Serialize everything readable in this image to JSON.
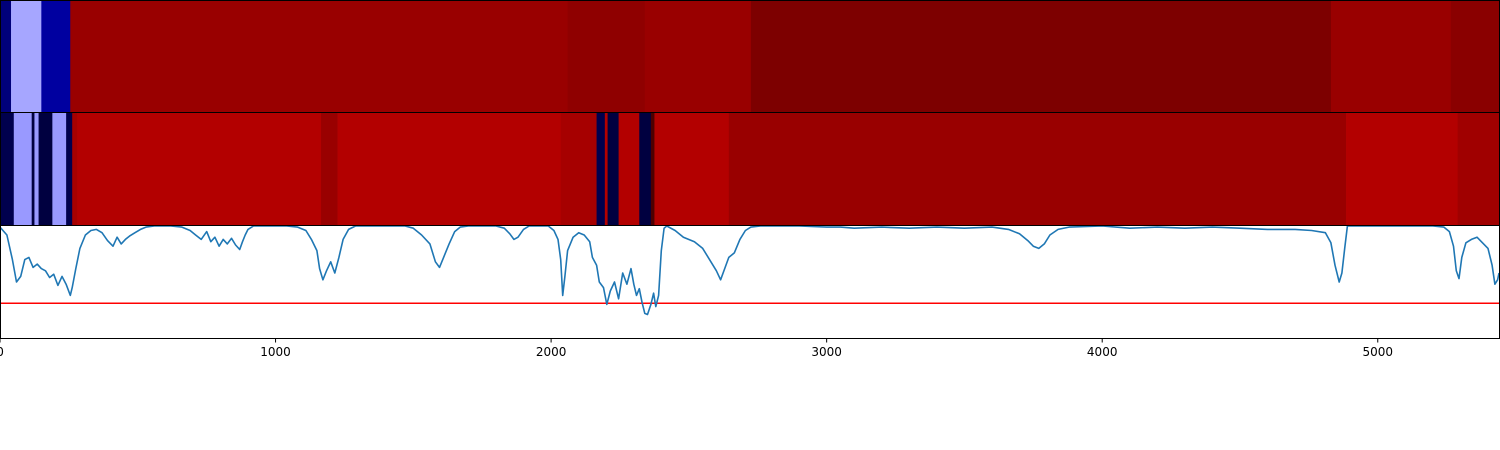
{
  "chart_data": [
    {
      "type": "heatmap",
      "xlim": [
        0,
        5440
      ],
      "segments": [
        {
          "x0": 0,
          "x1": 40,
          "color": "#00007a"
        },
        {
          "x0": 40,
          "x1": 150,
          "color": "#a6a6ff"
        },
        {
          "x0": 150,
          "x1": 255,
          "color": "#0000a0"
        },
        {
          "x0": 255,
          "x1": 2060,
          "color": "#990000"
        },
        {
          "x0": 2060,
          "x1": 2340,
          "color": "#8f0000"
        },
        {
          "x0": 2340,
          "x1": 2725,
          "color": "#990000"
        },
        {
          "x0": 2725,
          "x1": 4830,
          "color": "#7d0000"
        },
        {
          "x0": 4830,
          "x1": 5265,
          "color": "#990000"
        },
        {
          "x0": 5265,
          "x1": 5440,
          "color": "#8a0000"
        }
      ]
    },
    {
      "type": "heatmap",
      "xlim": [
        0,
        5440
      ],
      "segments": [
        {
          "x0": 0,
          "x1": 50,
          "color": "#00004d"
        },
        {
          "x0": 50,
          "x1": 115,
          "color": "#9999ff"
        },
        {
          "x0": 115,
          "x1": 125,
          "color": "#000040"
        },
        {
          "x0": 125,
          "x1": 140,
          "color": "#9999ff"
        },
        {
          "x0": 140,
          "x1": 190,
          "color": "#000040"
        },
        {
          "x0": 190,
          "x1": 240,
          "color": "#9999ff"
        },
        {
          "x0": 240,
          "x1": 262,
          "color": "#00004d"
        },
        {
          "x0": 262,
          "x1": 280,
          "color": "#a60000"
        },
        {
          "x0": 280,
          "x1": 1165,
          "color": "#b30000"
        },
        {
          "x0": 1165,
          "x1": 1225,
          "color": "#990000"
        },
        {
          "x0": 1225,
          "x1": 2035,
          "color": "#b30000"
        },
        {
          "x0": 2035,
          "x1": 2165,
          "color": "#a60000"
        },
        {
          "x0": 2165,
          "x1": 2195,
          "color": "#00004d"
        },
        {
          "x0": 2195,
          "x1": 2205,
          "color": "#b30000"
        },
        {
          "x0": 2205,
          "x1": 2245,
          "color": "#000040"
        },
        {
          "x0": 2245,
          "x1": 2320,
          "color": "#b30000"
        },
        {
          "x0": 2320,
          "x1": 2362,
          "color": "#000040"
        },
        {
          "x0": 2362,
          "x1": 2375,
          "color": "#4d0000"
        },
        {
          "x0": 2375,
          "x1": 2645,
          "color": "#b30000"
        },
        {
          "x0": 2645,
          "x1": 4885,
          "color": "#990000"
        },
        {
          "x0": 4885,
          "x1": 5290,
          "color": "#b30000"
        },
        {
          "x0": 5290,
          "x1": 5440,
          "color": "#a00000"
        }
      ]
    },
    {
      "type": "line",
      "xlim": [
        0,
        5440
      ],
      "ylim": [
        0,
        1
      ],
      "threshold": 0.31,
      "threshold_color": "#ff0000",
      "line_color": "#1f77b4",
      "grid": false,
      "xticks": [
        0,
        1000,
        2000,
        3000,
        4000,
        5000
      ],
      "xtick_labels": [
        "0",
        "1000",
        "2000",
        "3000",
        "4000",
        "5000"
      ],
      "points": [
        [
          0,
          0.99
        ],
        [
          25,
          0.92
        ],
        [
          45,
          0.7
        ],
        [
          60,
          0.5
        ],
        [
          75,
          0.55
        ],
        [
          90,
          0.7
        ],
        [
          105,
          0.72
        ],
        [
          120,
          0.63
        ],
        [
          135,
          0.66
        ],
        [
          150,
          0.62
        ],
        [
          165,
          0.6
        ],
        [
          180,
          0.54
        ],
        [
          195,
          0.57
        ],
        [
          210,
          0.47
        ],
        [
          225,
          0.55
        ],
        [
          240,
          0.48
        ],
        [
          255,
          0.38
        ],
        [
          262,
          0.45
        ],
        [
          275,
          0.62
        ],
        [
          290,
          0.8
        ],
        [
          310,
          0.92
        ],
        [
          330,
          0.96
        ],
        [
          350,
          0.97
        ],
        [
          370,
          0.94
        ],
        [
          390,
          0.87
        ],
        [
          410,
          0.82
        ],
        [
          425,
          0.9
        ],
        [
          440,
          0.84
        ],
        [
          455,
          0.88
        ],
        [
          470,
          0.91
        ],
        [
          490,
          0.94
        ],
        [
          510,
          0.97
        ],
        [
          530,
          0.99
        ],
        [
          560,
          1.0
        ],
        [
          620,
          1.0
        ],
        [
          660,
          0.99
        ],
        [
          690,
          0.96
        ],
        [
          710,
          0.92
        ],
        [
          730,
          0.88
        ],
        [
          750,
          0.95
        ],
        [
          765,
          0.86
        ],
        [
          780,
          0.9
        ],
        [
          795,
          0.82
        ],
        [
          810,
          0.88
        ],
        [
          825,
          0.84
        ],
        [
          840,
          0.89
        ],
        [
          855,
          0.83
        ],
        [
          870,
          0.79
        ],
        [
          880,
          0.86
        ],
        [
          890,
          0.92
        ],
        [
          900,
          0.97
        ],
        [
          920,
          1.0
        ],
        [
          1040,
          1.0
        ],
        [
          1080,
          0.99
        ],
        [
          1110,
          0.96
        ],
        [
          1130,
          0.88
        ],
        [
          1150,
          0.78
        ],
        [
          1160,
          0.62
        ],
        [
          1172,
          0.52
        ],
        [
          1185,
          0.6
        ],
        [
          1200,
          0.68
        ],
        [
          1215,
          0.58
        ],
        [
          1230,
          0.72
        ],
        [
          1245,
          0.88
        ],
        [
          1265,
          0.97
        ],
        [
          1290,
          1.0
        ],
        [
          1470,
          1.0
        ],
        [
          1500,
          0.98
        ],
        [
          1530,
          0.92
        ],
        [
          1560,
          0.84
        ],
        [
          1580,
          0.68
        ],
        [
          1595,
          0.63
        ],
        [
          1610,
          0.72
        ],
        [
          1630,
          0.84
        ],
        [
          1650,
          0.95
        ],
        [
          1670,
          0.99
        ],
        [
          1700,
          1.0
        ],
        [
          1800,
          1.0
        ],
        [
          1830,
          0.98
        ],
        [
          1850,
          0.93
        ],
        [
          1865,
          0.88
        ],
        [
          1880,
          0.9
        ],
        [
          1900,
          0.97
        ],
        [
          1920,
          1.0
        ],
        [
          1990,
          1.0
        ],
        [
          2010,
          0.96
        ],
        [
          2025,
          0.88
        ],
        [
          2035,
          0.7
        ],
        [
          2042,
          0.38
        ],
        [
          2050,
          0.55
        ],
        [
          2060,
          0.78
        ],
        [
          2080,
          0.9
        ],
        [
          2100,
          0.94
        ],
        [
          2120,
          0.92
        ],
        [
          2140,
          0.86
        ],
        [
          2150,
          0.72
        ],
        [
          2165,
          0.65
        ],
        [
          2175,
          0.5
        ],
        [
          2190,
          0.45
        ],
        [
          2202,
          0.3
        ],
        [
          2215,
          0.42
        ],
        [
          2230,
          0.5
        ],
        [
          2245,
          0.35
        ],
        [
          2260,
          0.58
        ],
        [
          2275,
          0.48
        ],
        [
          2290,
          0.62
        ],
        [
          2300,
          0.48
        ],
        [
          2310,
          0.38
        ],
        [
          2320,
          0.44
        ],
        [
          2330,
          0.32
        ],
        [
          2340,
          0.22
        ],
        [
          2350,
          0.21
        ],
        [
          2362,
          0.3
        ],
        [
          2372,
          0.4
        ],
        [
          2380,
          0.28
        ],
        [
          2390,
          0.38
        ],
        [
          2400,
          0.78
        ],
        [
          2410,
          0.98
        ],
        [
          2420,
          1.0
        ],
        [
          2450,
          0.96
        ],
        [
          2480,
          0.9
        ],
        [
          2520,
          0.86
        ],
        [
          2550,
          0.8
        ],
        [
          2580,
          0.68
        ],
        [
          2600,
          0.6
        ],
        [
          2615,
          0.52
        ],
        [
          2630,
          0.62
        ],
        [
          2645,
          0.72
        ],
        [
          2665,
          0.76
        ],
        [
          2685,
          0.88
        ],
        [
          2705,
          0.96
        ],
        [
          2725,
          0.99
        ],
        [
          2760,
          1.0
        ],
        [
          2900,
          1.0
        ],
        [
          3000,
          0.99
        ],
        [
          3050,
          0.99
        ],
        [
          3100,
          0.98
        ],
        [
          3200,
          0.99
        ],
        [
          3300,
          0.98
        ],
        [
          3400,
          0.99
        ],
        [
          3500,
          0.98
        ],
        [
          3600,
          0.99
        ],
        [
          3660,
          0.97
        ],
        [
          3700,
          0.93
        ],
        [
          3730,
          0.87
        ],
        [
          3750,
          0.82
        ],
        [
          3770,
          0.8
        ],
        [
          3790,
          0.84
        ],
        [
          3810,
          0.92
        ],
        [
          3840,
          0.97
        ],
        [
          3880,
          0.99
        ],
        [
          4000,
          1.0
        ],
        [
          4100,
          0.98
        ],
        [
          4200,
          0.99
        ],
        [
          4300,
          0.98
        ],
        [
          4400,
          0.99
        ],
        [
          4500,
          0.98
        ],
        [
          4600,
          0.97
        ],
        [
          4700,
          0.97
        ],
        [
          4760,
          0.96
        ],
        [
          4810,
          0.94
        ],
        [
          4830,
          0.85
        ],
        [
          4845,
          0.65
        ],
        [
          4860,
          0.5
        ],
        [
          4870,
          0.58
        ],
        [
          4880,
          0.8
        ],
        [
          4890,
          1.0
        ],
        [
          4950,
          1.0
        ],
        [
          5200,
          1.0
        ],
        [
          5240,
          0.99
        ],
        [
          5260,
          0.95
        ],
        [
          5275,
          0.82
        ],
        [
          5285,
          0.6
        ],
        [
          5295,
          0.53
        ],
        [
          5305,
          0.72
        ],
        [
          5320,
          0.85
        ],
        [
          5340,
          0.88
        ],
        [
          5360,
          0.9
        ],
        [
          5380,
          0.85
        ],
        [
          5400,
          0.8
        ],
        [
          5415,
          0.65
        ],
        [
          5425,
          0.48
        ],
        [
          5435,
          0.52
        ],
        [
          5440,
          0.58
        ]
      ]
    }
  ]
}
